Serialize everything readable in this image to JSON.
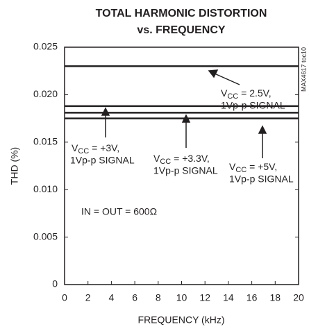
{
  "chart_data": {
    "type": "line",
    "title": "TOTAL HARMONIC DISTORTION",
    "subtitle": "vs. FREQUENCY",
    "x_label": "FREQUENCY (kHz)",
    "y_label": "THD (%)",
    "side_label": "MAX4617 toc10",
    "x": [
      0,
      20
    ],
    "series": [
      {
        "name": "VCC = 2.5V",
        "color": "#231f20",
        "values": [
          0.023,
          0.023
        ]
      },
      {
        "name": "VCC = +3V",
        "color": "#231f20",
        "values": [
          0.0188,
          0.0188
        ]
      },
      {
        "name": "VCC = +3.3V",
        "color": "#231f20",
        "values": [
          0.0181,
          0.0181
        ]
      },
      {
        "name": "VCC = +5V",
        "color": "#231f20",
        "values": [
          0.0175,
          0.0175
        ]
      }
    ],
    "xlim": [
      0,
      20
    ],
    "xticks": [
      0,
      2,
      4,
      6,
      8,
      10,
      12,
      14,
      16,
      18,
      20
    ],
    "ylim": [
      0,
      0.025
    ],
    "yticks": [
      0,
      {
        "value": 0.005,
        "label": "0.005"
      },
      {
        "value": 0.01,
        "label": "0.010"
      },
      {
        "value": 0.015,
        "label": "0.015"
      },
      {
        "value": 0.02,
        "label": "0.020"
      },
      {
        "value": 0.025,
        "label": "0.025"
      }
    ],
    "annotations": [
      {
        "parts": [
          "V",
          "CC",
          " = 2.5V,"
        ],
        "line2": "1Vp-p SIGNAL"
      },
      {
        "parts": [
          "V",
          "CC",
          " = +3V,"
        ],
        "line2": "1Vp-p SIGNAL"
      },
      {
        "parts": [
          "V",
          "CC",
          " = +3.3V,"
        ],
        "line2": "1Vp-p SIGNAL"
      },
      {
        "parts": [
          "V",
          "CC",
          " = +5V,"
        ],
        "line2": "1Vp-p SIGNAL"
      }
    ],
    "note": "IN = OUT = 600Ω"
  }
}
